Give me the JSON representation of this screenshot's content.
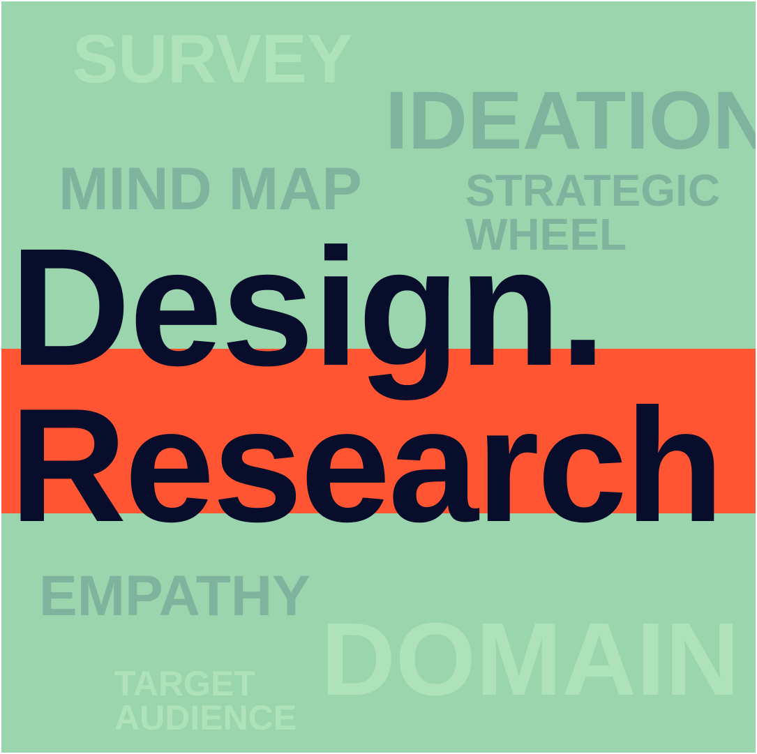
{
  "colors": {
    "background": "#9ad5ad",
    "accent_band": "#ff5533",
    "headline_text": "#070d2a",
    "dark_keyword": "#7fb39d",
    "light_keyword": "#aee3b9"
  },
  "headline": {
    "line1": "Design.",
    "line2": "Research"
  },
  "keywords": {
    "survey": "SURVEY",
    "ideation": "IDEATION",
    "mind_map": "MIND MAP",
    "strategic_line1": "STRATEGIC",
    "strategic_line2": "WHEEL",
    "empathy": "EMPATHY",
    "domain": "DOMAIN",
    "target_line1": "TARGET",
    "target_line2": "AUDIENCE"
  }
}
